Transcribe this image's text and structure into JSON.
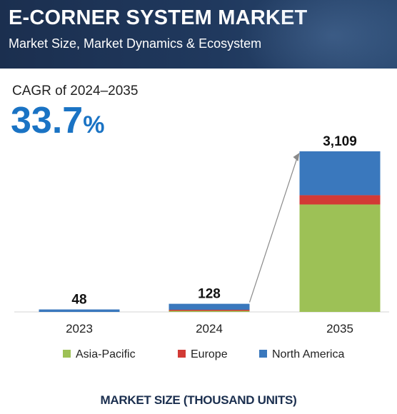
{
  "header": {
    "title": "E-CORNER SYSTEM MARKET",
    "subtitle": "Market Size, Market Dynamics & Ecosystem"
  },
  "cagr": {
    "label": "CAGR of 2024–2035",
    "value": "33.7",
    "unit": "%"
  },
  "chart_data": {
    "type": "bar",
    "stacked": true,
    "categories": [
      "2023",
      "2024",
      "2035"
    ],
    "series": [
      {
        "name": "Asia-Pacific",
        "color": "#9dc156",
        "values": [
          0,
          9,
          2080
        ]
      },
      {
        "name": "Europe",
        "color": "#d23a35",
        "values": [
          0,
          3,
          180
        ]
      },
      {
        "name": "North America",
        "color": "#3a78bd",
        "values": [
          48,
          116,
          849
        ]
      }
    ],
    "totals": [
      "48",
      "128",
      "3,109"
    ],
    "ylim": [
      0,
      3109
    ],
    "legend": "bottom",
    "grid": false,
    "annotation": "growth arrow from 2024 to 2035"
  },
  "footer": {
    "caption": "MARKET SIZE (THOUSAND UNITS)"
  }
}
